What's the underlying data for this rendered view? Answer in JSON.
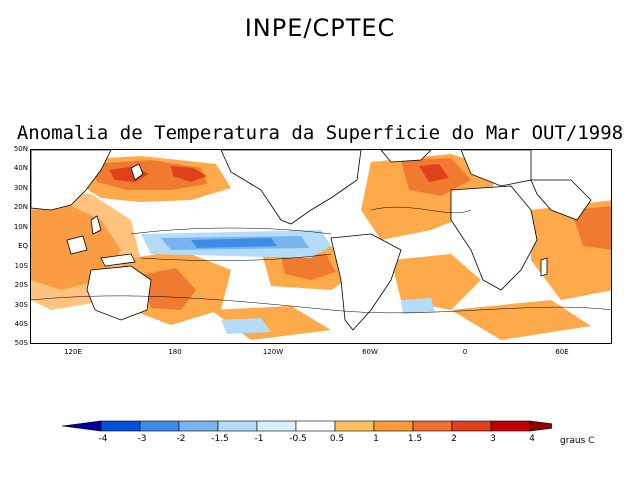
{
  "header": "INPE/CPTEC",
  "title": "Anomalia de Temperatura da Superficie do Mar OUT/1998",
  "lat_labels": [
    "50N",
    "40N",
    "30N",
    "20N",
    "10N",
    "EQ",
    "10S",
    "20S",
    "30S",
    "40S",
    "50S"
  ],
  "lon_labels": [
    "120E",
    "180",
    "120W",
    "60W",
    "0",
    "60E"
  ],
  "legend": {
    "ticks": [
      "-4",
      "-3",
      "-2",
      "-1.5",
      "-1",
      "-0.5",
      "0.5",
      "1",
      "1.5",
      "2",
      "3",
      "4"
    ],
    "units": "graus C",
    "colors": [
      "#0000a0",
      "#0050d8",
      "#3c8ce8",
      "#78b4f0",
      "#b4dcf8",
      "#d8f0fc",
      "#ffffff",
      "#ffc060",
      "#ff9a3c",
      "#f07030",
      "#e04020",
      "#c00000",
      "#900000"
    ]
  },
  "anomaly_colors": {
    "warm_light": "#ffaa4a",
    "warm_mid": "#f07a30",
    "warm_strong": "#e0401c",
    "warm_max": "#c00000",
    "cool_light": "#b4dcf8",
    "cool_mid": "#78b4f0",
    "cool_strong": "#3c8ce8"
  }
}
